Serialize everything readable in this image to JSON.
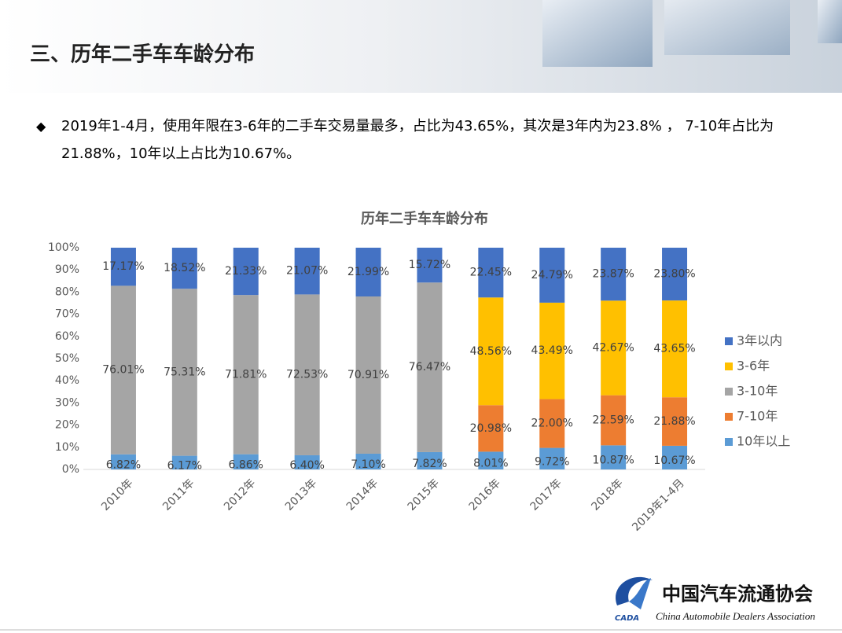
{
  "header": {
    "title": "三、历年二手车车龄分布"
  },
  "body": {
    "bullet": "2019年1-4月，使用年限在3-6年的二手车交易量最多，占比为43.65%，其次是3年内为23.8% ， 7-10年占比为21.88%，10年以上占比为10.67%。"
  },
  "chart_data": {
    "type": "stacked_bar",
    "title": "历年二手车车龄分布",
    "categories": [
      "2010年",
      "2011年",
      "2012年",
      "2013年",
      "2014年",
      "2015年",
      "2016年",
      "2017年",
      "2018年",
      "2019年1-4月"
    ],
    "series": [
      {
        "name": "10年以上",
        "color": "#5b9bd5",
        "values": [
          6.82,
          6.17,
          6.86,
          6.4,
          7.1,
          7.82,
          8.01,
          9.72,
          10.87,
          10.67
        ],
        "value_labels": [
          "6.82%",
          "6.17%",
          "6.86%",
          "6.40%",
          "7.10%",
          "7.82%",
          "8.01%",
          "9.72%",
          "10.87%",
          "10.67%"
        ]
      },
      {
        "name": "7-10年",
        "color": "#ed7d31",
        "values": [
          null,
          null,
          null,
          null,
          null,
          null,
          20.98,
          22.0,
          22.59,
          21.88
        ],
        "value_labels": [
          null,
          null,
          null,
          null,
          null,
          null,
          "20.98%",
          "22.00%",
          "22.59%",
          "21.88%"
        ]
      },
      {
        "name": "3-10年",
        "color": "#a5a5a5",
        "values": [
          76.01,
          75.31,
          71.81,
          72.53,
          70.91,
          76.47,
          null,
          null,
          null,
          null
        ],
        "value_labels": [
          "76.01%",
          "75.31%",
          "71.81%",
          "72.53%",
          "70.91%",
          "76.47%",
          null,
          null,
          null,
          null
        ]
      },
      {
        "name": "3-6年",
        "color": "#ffc000",
        "values": [
          null,
          null,
          null,
          null,
          null,
          null,
          48.56,
          43.49,
          42.67,
          43.65
        ],
        "value_labels": [
          null,
          null,
          null,
          null,
          null,
          null,
          "48.56%",
          "43.49%",
          "42.67%",
          "43.65%"
        ]
      },
      {
        "name": "3年以内",
        "color": "#4472c4",
        "values": [
          17.17,
          18.52,
          21.33,
          21.07,
          21.99,
          15.72,
          22.45,
          24.79,
          23.87,
          23.8
        ],
        "value_labels": [
          "17.17%",
          "18.52%",
          "21.33%",
          "21.07%",
          "21.99%",
          "15.72%",
          "22.45%",
          "24.79%",
          "23.87%",
          "23.80%"
        ]
      }
    ],
    "ylim": [
      0,
      100
    ],
    "yticks": [
      {
        "value": 0,
        "label": "0%"
      },
      {
        "value": 10,
        "label": "10%"
      },
      {
        "value": 20,
        "label": "20%"
      },
      {
        "value": 30,
        "label": "30%"
      },
      {
        "value": 40,
        "label": "40%"
      },
      {
        "value": 50,
        "label": "50%"
      },
      {
        "value": 60,
        "label": "60%"
      },
      {
        "value": 70,
        "label": "70%"
      },
      {
        "value": 80,
        "label": "80%"
      },
      {
        "value": 90,
        "label": "90%"
      },
      {
        "value": 100,
        "label": "100%"
      }
    ],
    "grid": false,
    "legend": "right"
  },
  "logo": {
    "name_cn": "中国汽车流通协会",
    "name_en": "China Automobile Dealers Association",
    "abbr": "CADA"
  }
}
